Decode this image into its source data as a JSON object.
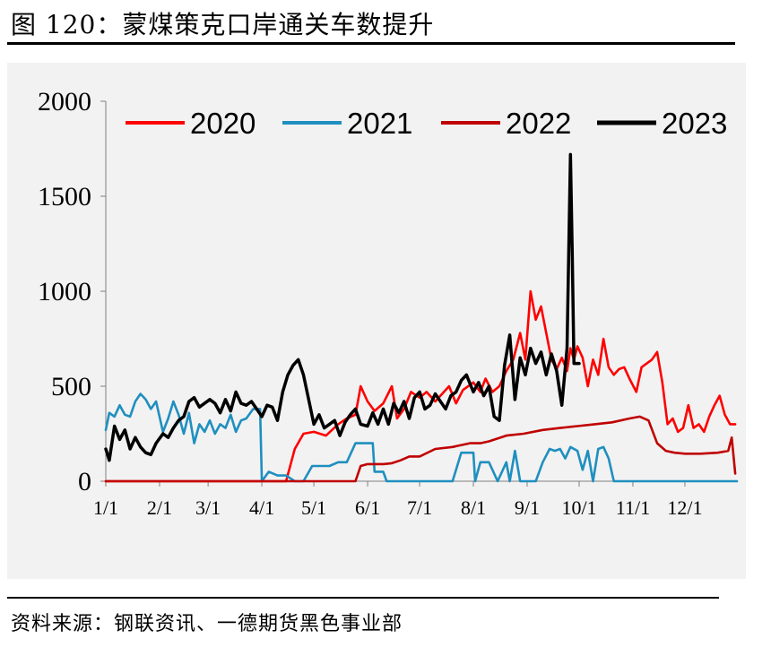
{
  "figure": {
    "title": "图 120：蒙煤策克口岸通关车数提升",
    "source": "资料来源：钢联资讯、一德期货黑色事业部"
  },
  "chart_data": {
    "type": "line",
    "ylim": [
      0,
      2000
    ],
    "yticks": [
      "0",
      "500",
      "1000",
      "1500",
      "2000"
    ],
    "xticks": [
      "1/1",
      "2/1",
      "3/1",
      "4/1",
      "5/1",
      "6/1",
      "7/1",
      "8/1",
      "9/1",
      "10/1",
      "11/1",
      "12/1"
    ],
    "grid": false,
    "legend_position": "top",
    "series": [
      {
        "name": "2020",
        "color": "#ff0000",
        "points": [
          [
            "1/1",
            0
          ],
          [
            "4/15",
            0
          ],
          [
            "4/20",
            170
          ],
          [
            "4/25",
            250
          ],
          [
            "5/1",
            260
          ],
          [
            "5/8",
            240
          ],
          [
            "5/15",
            300
          ],
          [
            "5/20",
            330
          ],
          [
            "5/25",
            350
          ],
          [
            "5/28",
            500
          ],
          [
            "6/1",
            420
          ],
          [
            "6/5",
            370
          ],
          [
            "6/10",
            410
          ],
          [
            "6/15",
            500
          ],
          [
            "6/18",
            330
          ],
          [
            "6/22",
            380
          ],
          [
            "6/26",
            470
          ],
          [
            "7/1",
            440
          ],
          [
            "7/5",
            470
          ],
          [
            "7/10",
            420
          ],
          [
            "7/14",
            460
          ],
          [
            "7/18",
            500
          ],
          [
            "7/22",
            410
          ],
          [
            "7/26",
            480
          ],
          [
            "8/1",
            520
          ],
          [
            "8/5",
            470
          ],
          [
            "8/8",
            540
          ],
          [
            "8/12",
            470
          ],
          [
            "8/16",
            500
          ],
          [
            "8/20",
            580
          ],
          [
            "8/24",
            640
          ],
          [
            "8/28",
            780
          ],
          [
            "8/31",
            640
          ],
          [
            "9/3",
            1000
          ],
          [
            "9/6",
            850
          ],
          [
            "9/9",
            920
          ],
          [
            "9/12",
            780
          ],
          [
            "9/15",
            640
          ],
          [
            "9/18",
            590
          ],
          [
            "9/21",
            650
          ],
          [
            "9/24",
            580
          ],
          [
            "9/26",
            700
          ],
          [
            "9/28",
            640
          ],
          [
            "9/30",
            710
          ],
          [
            "10/3",
            650
          ],
          [
            "10/6",
            500
          ],
          [
            "10/9",
            640
          ],
          [
            "10/12",
            560
          ],
          [
            "10/15",
            750
          ],
          [
            "10/18",
            600
          ],
          [
            "10/21",
            560
          ],
          [
            "10/24",
            590
          ],
          [
            "10/27",
            600
          ],
          [
            "10/30",
            540
          ],
          [
            "11/3",
            470
          ],
          [
            "11/6",
            600
          ],
          [
            "11/9",
            620
          ],
          [
            "11/12",
            640
          ],
          [
            "11/15",
            680
          ],
          [
            "11/18",
            520
          ],
          [
            "11/21",
            300
          ],
          [
            "11/24",
            330
          ],
          [
            "11/27",
            260
          ],
          [
            "11/30",
            280
          ],
          [
            "12/3",
            400
          ],
          [
            "12/6",
            280
          ],
          [
            "12/9",
            300
          ],
          [
            "12/12",
            260
          ],
          [
            "12/15",
            340
          ],
          [
            "12/18",
            400
          ],
          [
            "12/21",
            450
          ],
          [
            "12/24",
            350
          ],
          [
            "12/27",
            300
          ],
          [
            "12/30",
            300
          ]
        ]
      },
      {
        "name": "2021",
        "color": "#1f8fbf",
        "points": [
          [
            "1/1",
            270
          ],
          [
            "1/3",
            360
          ],
          [
            "1/6",
            340
          ],
          [
            "1/9",
            400
          ],
          [
            "1/12",
            350
          ],
          [
            "1/15",
            340
          ],
          [
            "1/18",
            420
          ],
          [
            "1/21",
            460
          ],
          [
            "1/24",
            430
          ],
          [
            "1/27",
            380
          ],
          [
            "1/30",
            420
          ],
          [
            "2/3",
            260
          ],
          [
            "2/6",
            330
          ],
          [
            "2/9",
            420
          ],
          [
            "2/12",
            350
          ],
          [
            "2/15",
            250
          ],
          [
            "2/18",
            360
          ],
          [
            "2/21",
            200
          ],
          [
            "2/24",
            300
          ],
          [
            "2/27",
            260
          ],
          [
            "3/2",
            320
          ],
          [
            "3/5",
            250
          ],
          [
            "3/8",
            300
          ],
          [
            "3/11",
            280
          ],
          [
            "3/14",
            350
          ],
          [
            "3/17",
            260
          ],
          [
            "3/20",
            320
          ],
          [
            "3/23",
            330
          ],
          [
            "3/27",
            380
          ],
          [
            "3/31",
            380
          ],
          [
            "4/1",
            0
          ],
          [
            "4/5",
            50
          ],
          [
            "4/10",
            30
          ],
          [
            "4/15",
            30
          ],
          [
            "4/20",
            0
          ],
          [
            "4/25",
            0
          ],
          [
            "4/30",
            80
          ],
          [
            "5/5",
            80
          ],
          [
            "5/10",
            80
          ],
          [
            "5/15",
            100
          ],
          [
            "5/20",
            100
          ],
          [
            "5/25",
            200
          ],
          [
            "5/30",
            200
          ],
          [
            "6/4",
            200
          ],
          [
            "6/5",
            50
          ],
          [
            "6/10",
            50
          ],
          [
            "6/12",
            0
          ],
          [
            "6/20",
            0
          ],
          [
            "6/25",
            0
          ],
          [
            "7/1",
            0
          ],
          [
            "7/10",
            0
          ],
          [
            "7/20",
            0
          ],
          [
            "7/25",
            150
          ],
          [
            "8/1",
            150
          ],
          [
            "8/2",
            0
          ],
          [
            "8/5",
            100
          ],
          [
            "8/10",
            100
          ],
          [
            "8/15",
            0
          ],
          [
            "8/20",
            100
          ],
          [
            "8/22",
            0
          ],
          [
            "8/25",
            160
          ],
          [
            "8/28",
            0
          ],
          [
            "9/1",
            0
          ],
          [
            "9/6",
            0
          ],
          [
            "9/10",
            100
          ],
          [
            "9/14",
            170
          ],
          [
            "9/17",
            160
          ],
          [
            "9/20",
            170
          ],
          [
            "9/23",
            120
          ],
          [
            "9/26",
            180
          ],
          [
            "9/30",
            160
          ],
          [
            "10/3",
            60
          ],
          [
            "10/6",
            160
          ],
          [
            "10/9",
            0
          ],
          [
            "10/12",
            170
          ],
          [
            "10/15",
            180
          ],
          [
            "10/18",
            120
          ],
          [
            "10/21",
            0
          ],
          [
            "11/1",
            0
          ],
          [
            "12/1",
            0
          ],
          [
            "12/31",
            0
          ]
        ]
      },
      {
        "name": "2022",
        "color": "#c00000",
        "points": [
          [
            "1/1",
            0
          ],
          [
            "5/25",
            0
          ],
          [
            "5/28",
            80
          ],
          [
            "6/1",
            90
          ],
          [
            "6/10",
            90
          ],
          [
            "6/15",
            95
          ],
          [
            "6/20",
            110
          ],
          [
            "6/25",
            130
          ],
          [
            "7/1",
            130
          ],
          [
            "7/10",
            170
          ],
          [
            "7/20",
            180
          ],
          [
            "7/30",
            200
          ],
          [
            "8/5",
            200
          ],
          [
            "8/10",
            210
          ],
          [
            "8/20",
            240
          ],
          [
            "8/30",
            250
          ],
          [
            "9/10",
            270
          ],
          [
            "9/20",
            280
          ],
          [
            "9/30",
            290
          ],
          [
            "10/10",
            300
          ],
          [
            "10/20",
            310
          ],
          [
            "10/30",
            330
          ],
          [
            "11/5",
            340
          ],
          [
            "11/10",
            320
          ],
          [
            "11/15",
            200
          ],
          [
            "11/20",
            160
          ],
          [
            "11/25",
            150
          ],
          [
            "12/1",
            145
          ],
          [
            "12/10",
            145
          ],
          [
            "12/20",
            150
          ],
          [
            "12/26",
            160
          ],
          [
            "12/28",
            230
          ],
          [
            "12/30",
            40
          ]
        ]
      },
      {
        "name": "2023",
        "color": "#000000",
        "points": [
          [
            "1/1",
            170
          ],
          [
            "1/3",
            110
          ],
          [
            "1/6",
            290
          ],
          [
            "1/9",
            220
          ],
          [
            "1/12",
            270
          ],
          [
            "1/15",
            170
          ],
          [
            "1/18",
            230
          ],
          [
            "1/21",
            180
          ],
          [
            "1/24",
            150
          ],
          [
            "1/27",
            140
          ],
          [
            "1/30",
            200
          ],
          [
            "2/3",
            250
          ],
          [
            "2/6",
            230
          ],
          [
            "2/9",
            280
          ],
          [
            "2/12",
            320
          ],
          [
            "2/15",
            340
          ],
          [
            "2/18",
            420
          ],
          [
            "2/21",
            440
          ],
          [
            "2/24",
            390
          ],
          [
            "2/27",
            410
          ],
          [
            "3/2",
            430
          ],
          [
            "3/5",
            410
          ],
          [
            "3/8",
            360
          ],
          [
            "3/11",
            430
          ],
          [
            "3/14",
            370
          ],
          [
            "3/17",
            470
          ],
          [
            "3/20",
            410
          ],
          [
            "3/23",
            400
          ],
          [
            "3/26",
            420
          ],
          [
            "3/29",
            380
          ],
          [
            "4/1",
            340
          ],
          [
            "4/4",
            400
          ],
          [
            "4/7",
            390
          ],
          [
            "4/10",
            320
          ],
          [
            "4/13",
            470
          ],
          [
            "4/16",
            560
          ],
          [
            "4/19",
            610
          ],
          [
            "4/22",
            640
          ],
          [
            "4/25",
            560
          ],
          [
            "4/28",
            430
          ],
          [
            "5/1",
            300
          ],
          [
            "5/4",
            350
          ],
          [
            "5/7",
            280
          ],
          [
            "5/10",
            300
          ],
          [
            "5/13",
            320
          ],
          [
            "5/16",
            240
          ],
          [
            "5/19",
            310
          ],
          [
            "5/22",
            350
          ],
          [
            "5/25",
            380
          ],
          [
            "5/28",
            300
          ],
          [
            "6/1",
            290
          ],
          [
            "6/4",
            360
          ],
          [
            "6/7",
            300
          ],
          [
            "6/10",
            380
          ],
          [
            "6/13",
            300
          ],
          [
            "6/16",
            410
          ],
          [
            "6/19",
            360
          ],
          [
            "6/22",
            420
          ],
          [
            "6/25",
            330
          ],
          [
            "6/28",
            440
          ],
          [
            "7/1",
            470
          ],
          [
            "7/4",
            380
          ],
          [
            "7/7",
            400
          ],
          [
            "7/10",
            460
          ],
          [
            "7/13",
            420
          ],
          [
            "7/16",
            380
          ],
          [
            "7/19",
            450
          ],
          [
            "7/22",
            470
          ],
          [
            "7/25",
            530
          ],
          [
            "7/28",
            560
          ],
          [
            "8/1",
            470
          ],
          [
            "8/4",
            520
          ],
          [
            "8/7",
            450
          ],
          [
            "8/10",
            500
          ],
          [
            "8/13",
            340
          ],
          [
            "8/16",
            320
          ],
          [
            "8/19",
            610
          ],
          [
            "8/22",
            770
          ],
          [
            "8/25",
            430
          ],
          [
            "8/28",
            650
          ],
          [
            "8/31",
            560
          ],
          [
            "9/3",
            700
          ],
          [
            "9/6",
            620
          ],
          [
            "9/9",
            680
          ],
          [
            "9/12",
            560
          ],
          [
            "9/15",
            670
          ],
          [
            "9/18",
            580
          ],
          [
            "9/21",
            400
          ],
          [
            "9/24",
            700
          ],
          [
            "9/26",
            1720
          ],
          [
            "9/27",
            1200
          ],
          [
            "9/28",
            620
          ],
          [
            "10/1",
            620
          ]
        ]
      }
    ]
  }
}
